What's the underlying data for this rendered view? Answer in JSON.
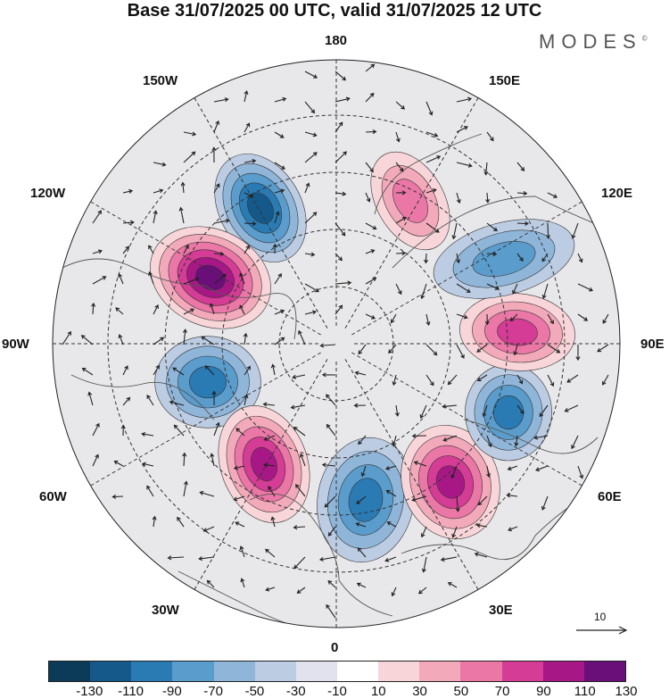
{
  "title": "Base 31/07/2025 00 UTC, valid 31/07/2025 12 UTC",
  "brand": {
    "name": "MODES",
    "mark": "©"
  },
  "longitude_labels": {
    "top": "180",
    "bottom": "0",
    "left": "90W",
    "right": "90E",
    "upper_left": "150W",
    "upper_right": "150E",
    "left_upper": "120W",
    "right_upper": "120E",
    "left_lower": "60W",
    "right_lower": "60E",
    "lower_left": "30W",
    "lower_right": "30E"
  },
  "vector_reference": {
    "label": "10"
  },
  "colorbar": {
    "colors": [
      "#0c3b5a",
      "#14598a",
      "#2a7ab4",
      "#5a9ccc",
      "#8fb6d9",
      "#bccce3",
      "#e2e2ef",
      "#ffffff",
      "#f8d5d8",
      "#f2aabb",
      "#ea77a6",
      "#d43c95",
      "#a71886",
      "#6a0e7a"
    ],
    "ticks": [
      "-130",
      "-110",
      "-90",
      "-70",
      "-50",
      "-30",
      "-10",
      "10",
      "30",
      "50",
      "70",
      "90",
      "110",
      "130"
    ]
  },
  "anomalies": [
    {
      "name": "low-north-pacific",
      "polarity": "negative",
      "strength": 110
    },
    {
      "name": "high-alaska",
      "polarity": "positive",
      "strength": 120
    },
    {
      "name": "low-canada",
      "polarity": "negative",
      "strength": 90
    },
    {
      "name": "high-north-atlantic",
      "polarity": "positive",
      "strength": 100
    },
    {
      "name": "low-western-europe",
      "polarity": "negative",
      "strength": 90
    },
    {
      "name": "high-eastern-europe",
      "polarity": "positive",
      "strength": 110
    },
    {
      "name": "low-ural",
      "polarity": "negative",
      "strength": 80
    },
    {
      "name": "high-siberia",
      "polarity": "positive",
      "strength": 90
    },
    {
      "name": "low-east-siberia",
      "polarity": "negative",
      "strength": 60
    },
    {
      "name": "high-east-asia",
      "polarity": "positive",
      "strength": 70
    }
  ]
}
